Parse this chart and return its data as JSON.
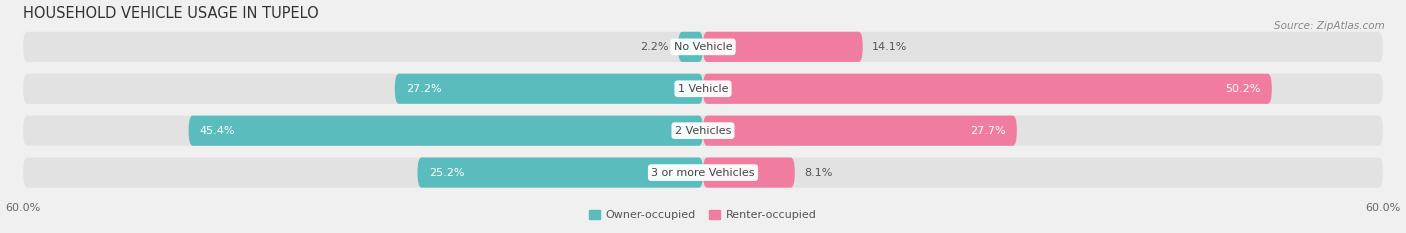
{
  "title": "HOUSEHOLD VEHICLE USAGE IN TUPELO",
  "source": "Source: ZipAtlas.com",
  "categories": [
    "No Vehicle",
    "1 Vehicle",
    "2 Vehicles",
    "3 or more Vehicles"
  ],
  "owner_values": [
    2.2,
    27.2,
    45.4,
    25.2
  ],
  "renter_values": [
    14.1,
    50.2,
    27.7,
    8.1
  ],
  "owner_color": "#5bbcbd",
  "renter_color": "#f07ca0",
  "background_color": "#f0f0f0",
  "bar_bg_color": "#e2e2e2",
  "xlim": 60.0,
  "legend_owner": "Owner-occupied",
  "legend_renter": "Renter-occupied",
  "title_fontsize": 10.5,
  "label_fontsize": 8.0,
  "tick_fontsize": 8.0,
  "bar_height": 0.72,
  "bar_gap": 0.18
}
